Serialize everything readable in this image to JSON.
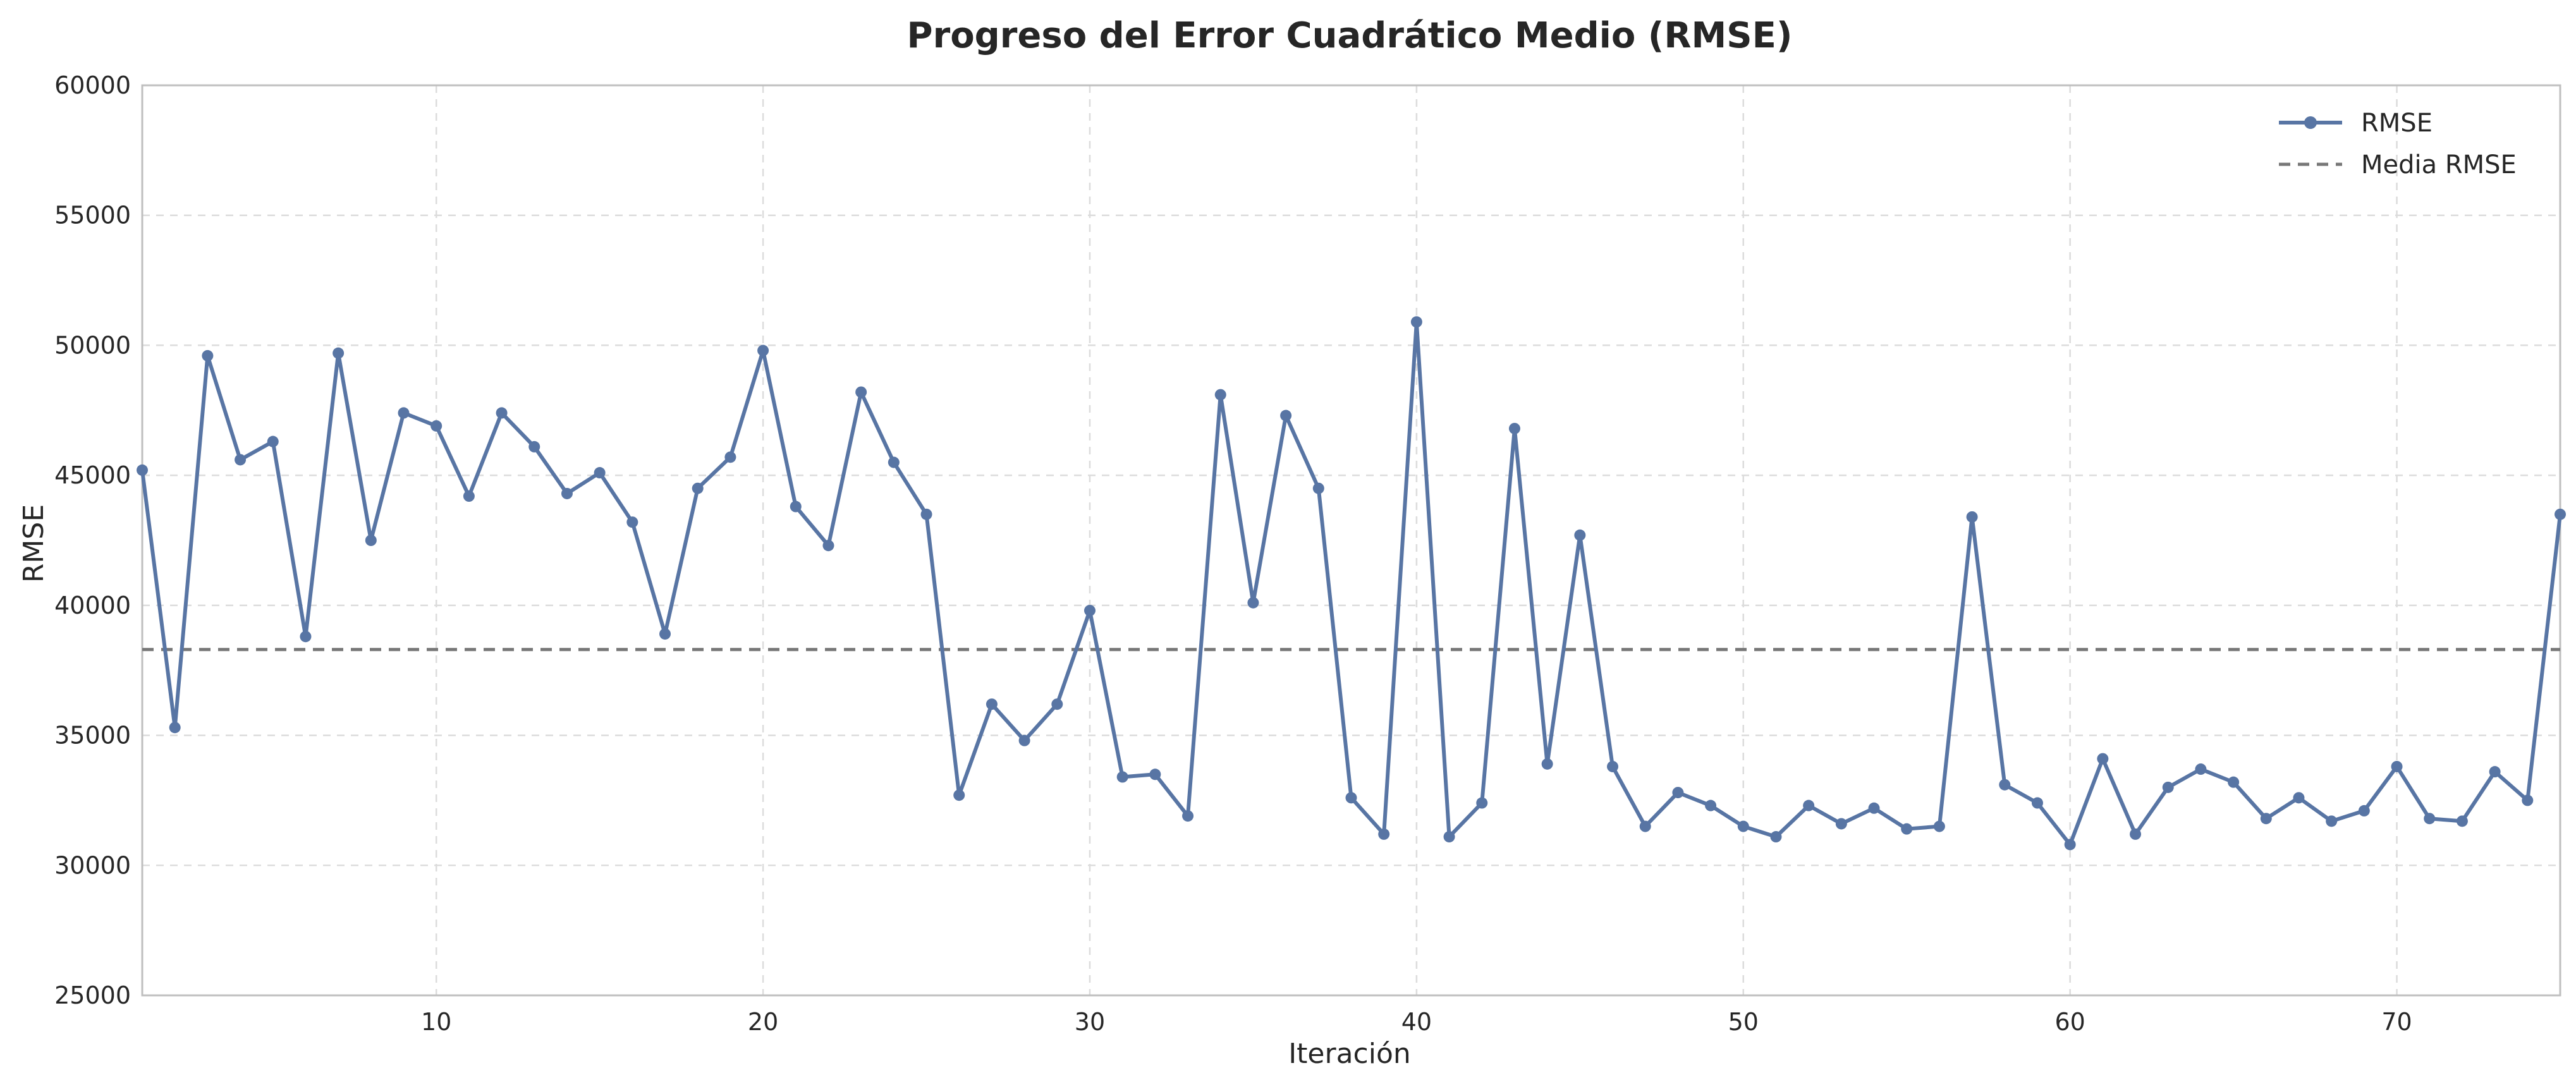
{
  "chart_data": {
    "type": "line",
    "title": "Progreso del Error Cuadrático Medio (RMSE)",
    "xlabel": "Iteración",
    "ylabel": "RMSE",
    "xlim": [
      1,
      75
    ],
    "ylim": [
      25000,
      60000
    ],
    "xticks": [
      10,
      20,
      30,
      40,
      50,
      60,
      70
    ],
    "yticks": [
      25000,
      30000,
      35000,
      40000,
      45000,
      50000,
      55000,
      60000
    ],
    "grid": true,
    "legend_position": "top-right",
    "colors": {
      "rmse": "#5875a4",
      "mean": "#777777"
    },
    "series": [
      {
        "name": "RMSE",
        "style": "solid-with-markers",
        "x": [
          1,
          2,
          3,
          4,
          5,
          6,
          7,
          8,
          9,
          10,
          11,
          12,
          13,
          14,
          15,
          16,
          17,
          18,
          19,
          20,
          21,
          22,
          23,
          24,
          25,
          26,
          27,
          28,
          29,
          30,
          31,
          32,
          33,
          34,
          35,
          36,
          37,
          38,
          39,
          40,
          41,
          42,
          43,
          44,
          45,
          46,
          47,
          48,
          49,
          50,
          51,
          52,
          53,
          54,
          55,
          56,
          57,
          58,
          59,
          60,
          61,
          62,
          63,
          64,
          65,
          66,
          67,
          68,
          69,
          70,
          71,
          72,
          73,
          74,
          75
        ],
        "values": [
          45200,
          35300,
          49600,
          45600,
          46300,
          38800,
          49700,
          42500,
          47400,
          46900,
          44200,
          47400,
          46100,
          44300,
          45100,
          43200,
          38900,
          44500,
          45700,
          49800,
          43800,
          42300,
          48200,
          45500,
          43500,
          32700,
          36200,
          34800,
          36200,
          39800,
          33400,
          33500,
          31900,
          48100,
          40100,
          47300,
          44500,
          32600,
          31200,
          50900,
          31100,
          32400,
          46800,
          33900,
          42700,
          33800,
          31500,
          32800,
          32300,
          31500,
          31100,
          32300,
          31600,
          32200,
          31400,
          31500,
          43400,
          33100,
          32400,
          30800,
          34100,
          31200,
          33000,
          33700,
          33200,
          31800,
          32600,
          31700,
          32100,
          33800,
          31800,
          31700,
          33600,
          32500,
          43500
        ]
      },
      {
        "name": "Media RMSE",
        "style": "dashed",
        "value": 38300
      }
    ]
  }
}
